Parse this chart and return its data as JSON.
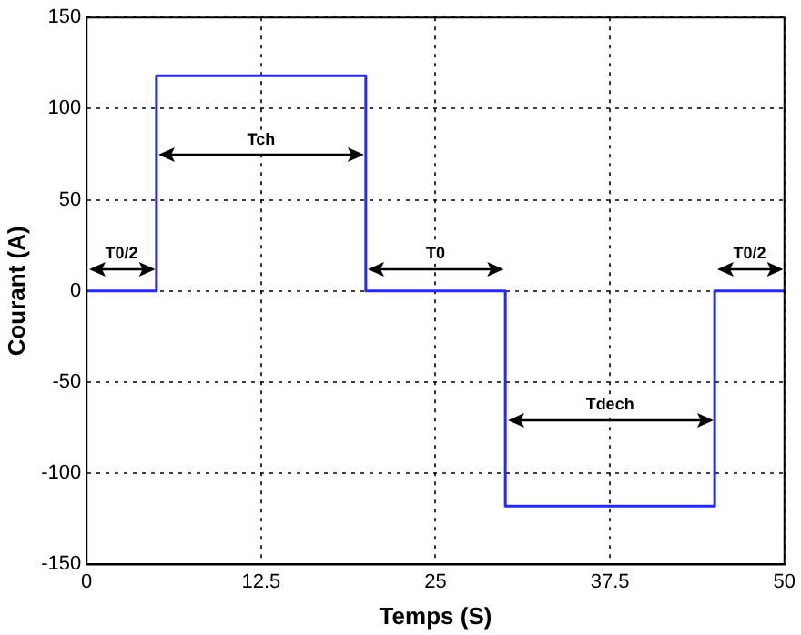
{
  "chart_data": {
    "type": "line",
    "xlabel": "Temps (S)",
    "ylabel": "Courant (A)",
    "series": [
      {
        "color": "#2a2ae6",
        "x": [
          0,
          5,
          5,
          20,
          20,
          30,
          30,
          45,
          45,
          50
        ],
        "values": [
          0,
          0,
          118,
          118,
          0,
          0,
          -118,
          -118,
          0,
          0
        ]
      }
    ],
    "xlim": [
      0,
      50
    ],
    "xticks": [
      0,
      12.5,
      25,
      37.5,
      50
    ],
    "ylim": [
      -150,
      150
    ],
    "yticks": [
      -150,
      -100,
      -50,
      0,
      50,
      100,
      150
    ],
    "grid": true,
    "legend": false,
    "marker": "none",
    "line_style": "solid",
    "annotations": [
      "T0/2",
      "Tch",
      "T0",
      "Tdech",
      "T0/2"
    ]
  }
}
